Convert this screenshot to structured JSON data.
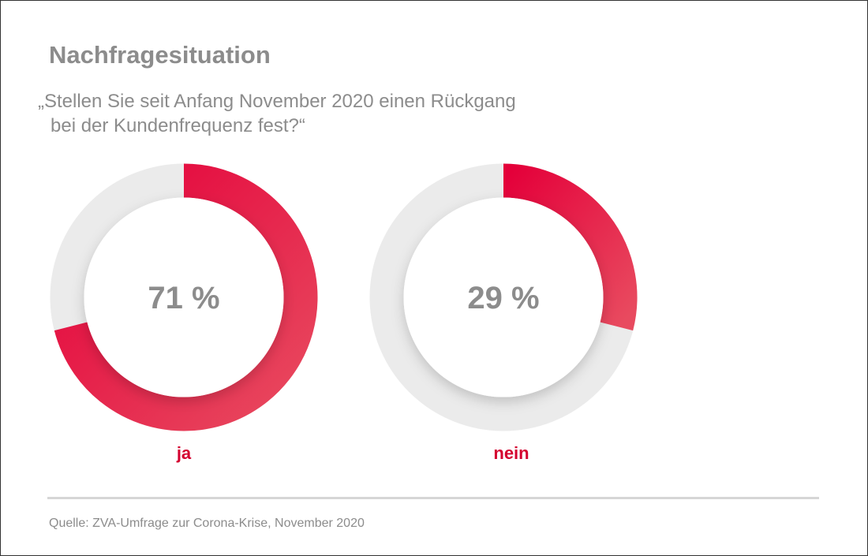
{
  "title": "Nachfragesituation",
  "question_line1": "„Stellen Sie seit Anfang November 2020 einen Rückgang",
  "question_line2": "bei der Kundenfrequenz fest?“",
  "source": "Quelle: ZVA-Umfrage zur Corona-Krise, November 2020",
  "colors": {
    "accent": "#e4003a",
    "track": "#ebebeb",
    "text": "#8c8c8c"
  },
  "chart_data": [
    {
      "type": "pie",
      "variant": "donut",
      "label": "ja",
      "value": 71,
      "value_label": "71 %"
    },
    {
      "type": "pie",
      "variant": "donut",
      "label": "nein",
      "value": 29,
      "value_label": "29 %"
    }
  ]
}
